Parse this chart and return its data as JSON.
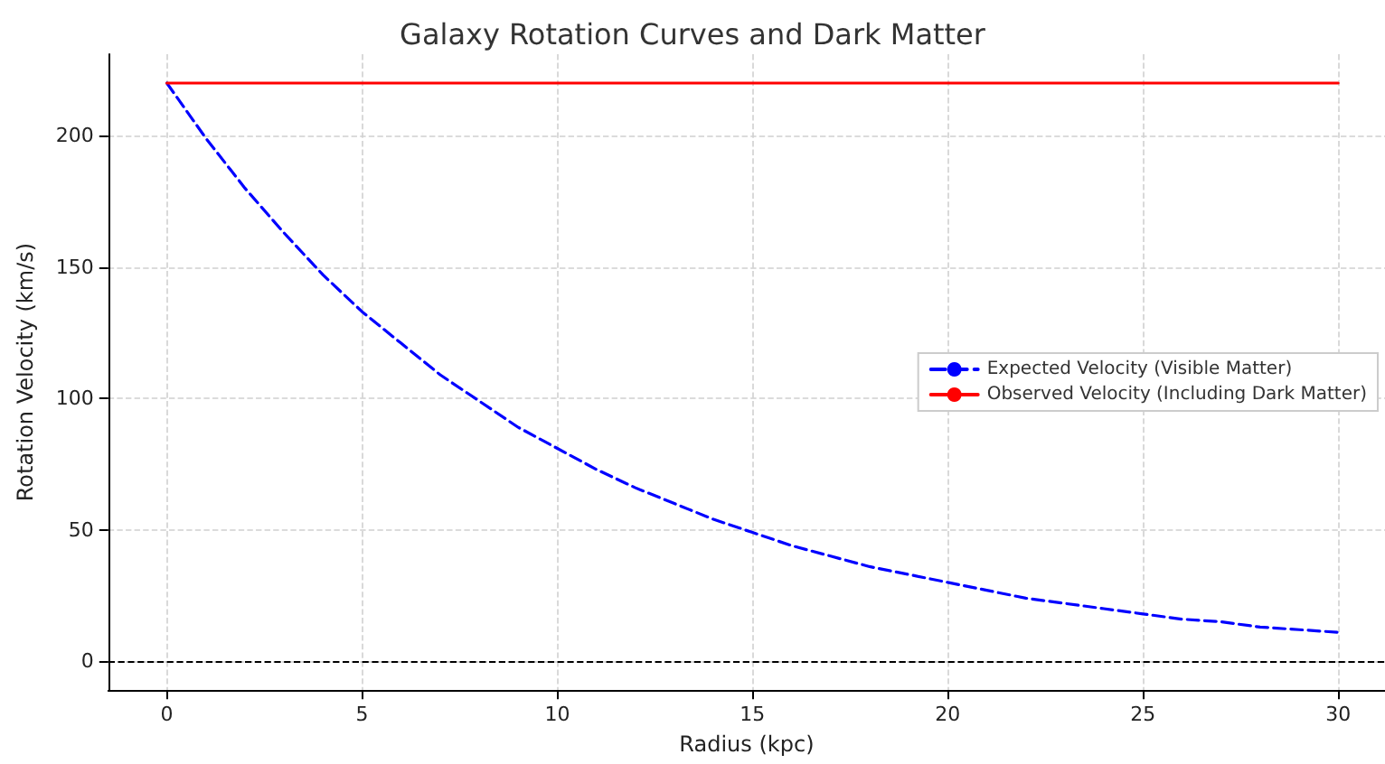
{
  "chart_data": {
    "type": "line",
    "title": "Galaxy Rotation Curves and Dark Matter",
    "xlabel": "Radius (kpc)",
    "ylabel": "Rotation Velocity (km/s)",
    "x": [
      0,
      1,
      2,
      3,
      4,
      5,
      6,
      7,
      8,
      9,
      10,
      11,
      12,
      13,
      14,
      15,
      16,
      17,
      18,
      19,
      20,
      21,
      22,
      23,
      24,
      25,
      26,
      27,
      28,
      29,
      30
    ],
    "series": [
      {
        "name": "Expected Velocity (Visible Matter)",
        "color": "#0000ff",
        "line_style": "dashed",
        "values": [
          220,
          199,
          180,
          163,
          147,
          133,
          121,
          109,
          99,
          89,
          81,
          73,
          66,
          60,
          54,
          49,
          44,
          40,
          36,
          33,
          30,
          27,
          24,
          22,
          20,
          18,
          16,
          15,
          13,
          12,
          11
        ]
      },
      {
        "name": "Observed Velocity (Including Dark Matter)",
        "color": "#ff0000",
        "line_style": "solid",
        "values": [
          220,
          220,
          220,
          220,
          220,
          220,
          220,
          220,
          220,
          220,
          220,
          220,
          220,
          220,
          220,
          220,
          220,
          220,
          220,
          220,
          220,
          220,
          220,
          220,
          220,
          220,
          220,
          220,
          220,
          220,
          220
        ]
      }
    ],
    "xlim": [
      -1.5,
      31.2
    ],
    "ylim": [
      -11,
      231
    ],
    "xticks": [
      0,
      5,
      10,
      15,
      20,
      25,
      30
    ],
    "yticks": [
      0,
      50,
      100,
      150,
      200
    ],
    "ref_lines": [
      {
        "axis": "y",
        "value": 0,
        "color": "#000000",
        "line_style": "dashed"
      }
    ],
    "grid": true,
    "legend": "right",
    "marker": "none"
  }
}
